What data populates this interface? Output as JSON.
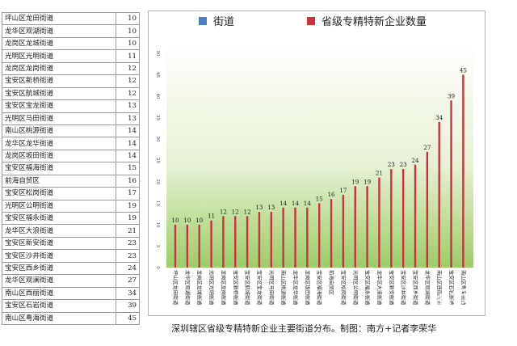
{
  "table": {
    "rows": [
      {
        "name": "坪山区龙田街道",
        "value": "10"
      },
      {
        "name": "龙华区观湖街道",
        "value": "10"
      },
      {
        "name": "龙岗区龙城街道",
        "value": "10"
      },
      {
        "name": "光明区光明街道",
        "value": "11"
      },
      {
        "name": "龙岗区龙岗街道",
        "value": "12"
      },
      {
        "name": "宝安区新桥街道",
        "value": "12"
      },
      {
        "name": "宝安区航城街道",
        "value": "12"
      },
      {
        "name": "宝安区宝龙街道",
        "value": "13"
      },
      {
        "name": "光明区马田街道",
        "value": "13"
      },
      {
        "name": "南山区桃源街道",
        "value": "14"
      },
      {
        "name": "龙华区龙华街道",
        "value": "14"
      },
      {
        "name": "龙岗区坂田街道",
        "value": "14"
      },
      {
        "name": "宝安区福海街道",
        "value": "15"
      },
      {
        "name": "前海自贸区",
        "value": "16"
      },
      {
        "name": "宝安区松岗街道",
        "value": "17"
      },
      {
        "name": "光明区公明街道",
        "value": "19"
      },
      {
        "name": "宝安区福永街道",
        "value": "19"
      },
      {
        "name": "龙华区大浪街道",
        "value": "21"
      },
      {
        "name": "宝安区新安街道",
        "value": "23"
      },
      {
        "name": "宝安区沙井街道",
        "value": "23"
      },
      {
        "name": "宝安区西乡街道",
        "value": "24"
      },
      {
        "name": "龙华区观澜街道",
        "value": "27"
      },
      {
        "name": "南山区西丽街道",
        "value": "34"
      },
      {
        "name": "宝安区石岩街道",
        "value": "39"
      },
      {
        "name": "南山区粤海街道",
        "value": "45"
      }
    ]
  },
  "chart_data": {
    "type": "bar",
    "title": "",
    "xlabel": "",
    "ylabel": "",
    "legend": [
      "街道",
      "省级专精特新企业数量"
    ],
    "legend_position": "top",
    "legend_colors": [
      "#4a7fc1",
      "#c9323f"
    ],
    "bar_color": "#c9323f",
    "ylim": [
      0,
      50
    ],
    "yticks": [
      0,
      5,
      10,
      15,
      20,
      25,
      30,
      35,
      40,
      45,
      50
    ],
    "grid": false,
    "background": "green-gradient",
    "categories": [
      "坪山区龙田街道",
      "龙华区观湖街道",
      "龙岗区龙城街道",
      "光明区光明街道",
      "龙岗区龙岗街道",
      "宝安区新桥街道",
      "宝安区航城街道",
      "宝安区宝龙街道",
      "光明区马田街道",
      "南山区桃源街道",
      "龙华区龙华街道",
      "龙岗区坂田街道",
      "宝安区福海街道",
      "前海自贸区",
      "宝安区松岗街道",
      "光明区公明街道",
      "宝安区福永街道",
      "龙华区大浪街道",
      "宝安区新安街道",
      "宝安区沙井街道",
      "宝安区西乡街道",
      "龙华区观澜街道",
      "南山区西丽街道",
      "宝安区石岩街道",
      "南山区粤海街道"
    ],
    "series": [
      {
        "name": "省级专精特新企业数量",
        "values": [
          10,
          10,
          10,
          11,
          12,
          12,
          12,
          13,
          13,
          14,
          14,
          14,
          15,
          16,
          17,
          19,
          19,
          21,
          23,
          23,
          24,
          27,
          34,
          39,
          45
        ]
      }
    ]
  },
  "caption": "深圳辖区省级专精特新企业主要街道分布。制图：南方+记者李荣华",
  "watermark": "南方+"
}
